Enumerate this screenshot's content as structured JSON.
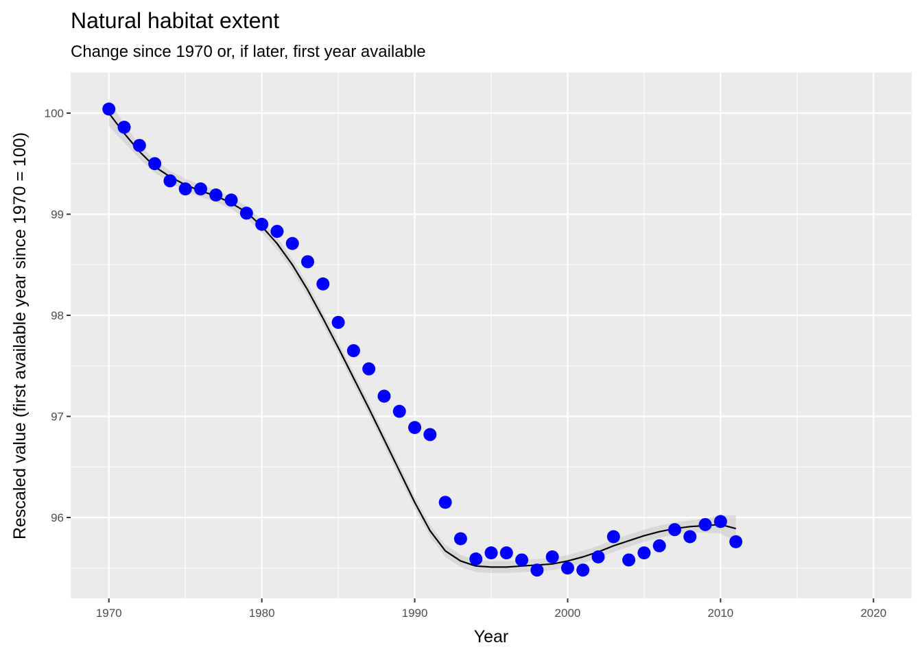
{
  "chart_data": {
    "type": "scatter",
    "title": "Natural habitat extent",
    "subtitle": "Change since 1970 or, if later, first year available",
    "xlabel": "Year",
    "ylabel": "Rescaled value (first available year since 1970 = 100)",
    "xlim": [
      1967.5,
      2022.5
    ],
    "ylim": [
      95.2,
      100.4
    ],
    "x_ticks": [
      1970,
      1980,
      1990,
      2000,
      2010,
      2020
    ],
    "y_ticks": [
      96,
      97,
      98,
      99,
      100
    ],
    "grid": true,
    "legend": "none",
    "series": [
      {
        "type": "points",
        "color": "#0000ff",
        "x": [
          1970,
          1971,
          1972,
          1973,
          1974,
          1975,
          1976,
          1977,
          1978,
          1979,
          1980,
          1981,
          1982,
          1983,
          1984,
          1985,
          1986,
          1987,
          1988,
          1989,
          1990,
          1991,
          1992,
          1993,
          1994,
          1995,
          1996,
          1997,
          1998,
          1999,
          2000,
          2001,
          2002,
          2003,
          2004,
          2005,
          2006,
          2007,
          2008,
          2009,
          2010,
          2011
        ],
        "y": [
          100.04,
          99.86,
          99.68,
          99.5,
          99.33,
          99.25,
          99.25,
          99.19,
          99.14,
          99.01,
          98.9,
          98.83,
          98.71,
          98.53,
          98.31,
          97.93,
          97.65,
          97.47,
          97.2,
          97.05,
          96.89,
          96.82,
          96.15,
          95.79,
          95.59,
          95.65,
          95.65,
          95.58,
          95.48,
          95.61,
          95.5,
          95.48,
          95.61,
          95.81,
          95.58,
          95.65,
          95.72,
          95.88,
          95.81,
          95.93,
          95.96,
          95.76
        ]
      },
      {
        "type": "smooth",
        "color": "#000000",
        "band_color": "#cccccc",
        "x": [
          1970,
          1971,
          1972,
          1973,
          1974,
          1975,
          1976,
          1977,
          1978,
          1979,
          1980,
          1981,
          1982,
          1983,
          1984,
          1985,
          1986,
          1987,
          1988,
          1989,
          1990,
          1991,
          1992,
          1993,
          1994,
          1995,
          1996,
          1997,
          1998,
          1999,
          2000,
          2001,
          2002,
          2003,
          2004,
          2005,
          2006,
          2007,
          2008,
          2009,
          2010,
          2011
        ],
        "y": [
          100.0,
          99.8,
          99.62,
          99.47,
          99.37,
          99.29,
          99.23,
          99.18,
          99.11,
          99.02,
          98.88,
          98.71,
          98.5,
          98.25,
          97.97,
          97.68,
          97.38,
          97.08,
          96.77,
          96.46,
          96.15,
          95.87,
          95.67,
          95.57,
          95.52,
          95.51,
          95.51,
          95.52,
          95.53,
          95.54,
          95.57,
          95.61,
          95.66,
          95.72,
          95.77,
          95.82,
          95.86,
          95.89,
          95.91,
          95.92,
          95.93,
          95.89
        ],
        "se": [
          0.13,
          0.09,
          0.07,
          0.06,
          0.06,
          0.06,
          0.06,
          0.06,
          0.06,
          0.06,
          0.06,
          0.06,
          0.06,
          0.06,
          0.06,
          0.06,
          0.06,
          0.06,
          0.06,
          0.06,
          0.06,
          0.06,
          0.06,
          0.06,
          0.06,
          0.06,
          0.06,
          0.06,
          0.06,
          0.06,
          0.06,
          0.06,
          0.06,
          0.06,
          0.06,
          0.06,
          0.06,
          0.06,
          0.06,
          0.07,
          0.09,
          0.13
        ]
      }
    ]
  }
}
